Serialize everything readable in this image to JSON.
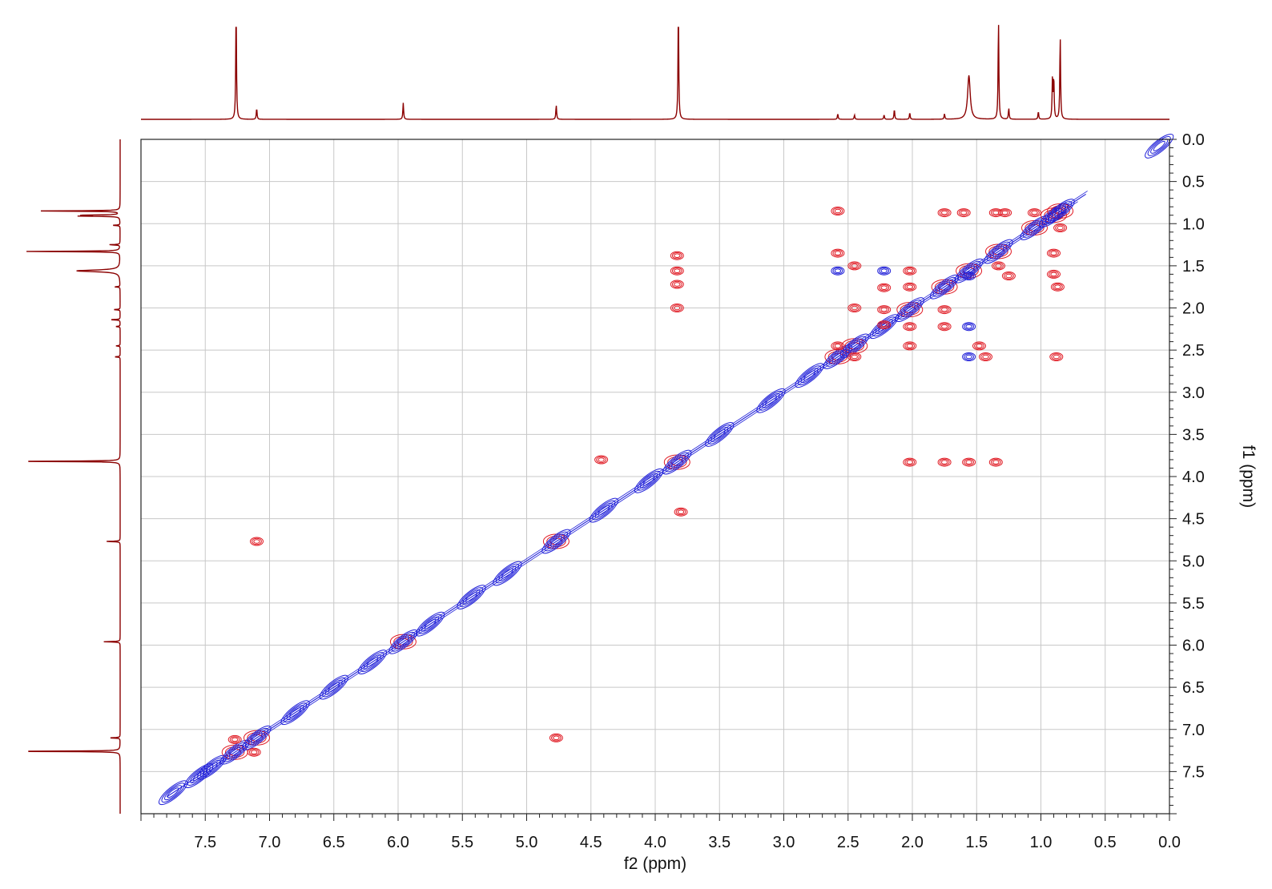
{
  "chart_data": {
    "type": "scatter",
    "subtype": "2D NMR COSY contour plot with 1D projections",
    "xlabel": "f2 (ppm)",
    "ylabel": "f1 (ppm)",
    "xlim": [
      8.0,
      0.0
    ],
    "ylim": [
      0.0,
      8.0
    ],
    "x_reversed": true,
    "y_top_to_bottom": true,
    "grid": true,
    "x_ticks": [
      "7.5",
      "7.0",
      "6.5",
      "6.0",
      "5.5",
      "5.0",
      "4.5",
      "4.0",
      "3.5",
      "3.0",
      "2.5",
      "2.0",
      "1.5",
      "1.0",
      "0.5",
      "0.0"
    ],
    "y_ticks": [
      "0.0",
      "0.5",
      "1.0",
      "1.5",
      "2.0",
      "2.5",
      "3.0",
      "3.5",
      "4.0",
      "4.5",
      "5.0",
      "5.5",
      "6.0",
      "6.5",
      "7.0",
      "7.5"
    ],
    "colors": {
      "positive": "#1f1fd8",
      "negative": "#e01b24",
      "projection": "#8b0000",
      "grid": "#c8c8c8"
    },
    "diagonal_peaks": [
      {
        "x": 7.75,
        "y": 7.75,
        "sign": "pos"
      },
      {
        "x": 7.55,
        "y": 7.55,
        "sign": "pos"
      },
      {
        "x": 7.45,
        "y": 7.45,
        "sign": "pos"
      },
      {
        "x": 7.27,
        "y": 7.27,
        "sign": "both"
      },
      {
        "x": 7.1,
        "y": 7.1,
        "sign": "both"
      },
      {
        "x": 6.8,
        "y": 6.8,
        "sign": "pos"
      },
      {
        "x": 6.5,
        "y": 6.5,
        "sign": "pos"
      },
      {
        "x": 6.2,
        "y": 6.2,
        "sign": "pos"
      },
      {
        "x": 5.96,
        "y": 5.96,
        "sign": "both"
      },
      {
        "x": 5.75,
        "y": 5.75,
        "sign": "pos"
      },
      {
        "x": 5.43,
        "y": 5.43,
        "sign": "pos"
      },
      {
        "x": 5.15,
        "y": 5.15,
        "sign": "pos"
      },
      {
        "x": 4.77,
        "y": 4.77,
        "sign": "both"
      },
      {
        "x": 4.4,
        "y": 4.4,
        "sign": "pos"
      },
      {
        "x": 4.05,
        "y": 4.05,
        "sign": "pos"
      },
      {
        "x": 3.83,
        "y": 3.83,
        "sign": "both"
      },
      {
        "x": 3.5,
        "y": 3.5,
        "sign": "pos"
      },
      {
        "x": 3.1,
        "y": 3.1,
        "sign": "pos"
      },
      {
        "x": 2.8,
        "y": 2.8,
        "sign": "pos"
      },
      {
        "x": 2.58,
        "y": 2.58,
        "sign": "both"
      },
      {
        "x": 2.45,
        "y": 2.45,
        "sign": "both"
      },
      {
        "x": 2.22,
        "y": 2.22,
        "sign": "pos"
      },
      {
        "x": 2.02,
        "y": 2.02,
        "sign": "both"
      },
      {
        "x": 1.75,
        "y": 1.75,
        "sign": "both"
      },
      {
        "x": 1.56,
        "y": 1.56,
        "sign": "both"
      },
      {
        "x": 1.33,
        "y": 1.33,
        "sign": "both"
      },
      {
        "x": 1.05,
        "y": 1.05,
        "sign": "both"
      },
      {
        "x": 0.9,
        "y": 0.9,
        "sign": "both"
      },
      {
        "x": 0.85,
        "y": 0.85,
        "sign": "both"
      },
      {
        "x": 0.08,
        "y": 0.08,
        "sign": "pos"
      }
    ],
    "cross_peaks": [
      {
        "x": 7.27,
        "y": 7.12,
        "sign": "neg"
      },
      {
        "x": 7.12,
        "y": 7.27,
        "sign": "neg"
      },
      {
        "x": 7.1,
        "y": 4.77,
        "sign": "neg"
      },
      {
        "x": 4.77,
        "y": 7.1,
        "sign": "neg"
      },
      {
        "x": 3.83,
        "y": 1.38,
        "sign": "neg"
      },
      {
        "x": 3.83,
        "y": 1.56,
        "sign": "neg"
      },
      {
        "x": 3.83,
        "y": 1.72,
        "sign": "neg"
      },
      {
        "x": 3.83,
        "y": 2.0,
        "sign": "neg"
      },
      {
        "x": 4.42,
        "y": 3.8,
        "sign": "neg"
      },
      {
        "x": 3.8,
        "y": 4.42,
        "sign": "neg"
      },
      {
        "x": 2.02,
        "y": 3.83,
        "sign": "neg"
      },
      {
        "x": 1.75,
        "y": 3.83,
        "sign": "neg"
      },
      {
        "x": 1.56,
        "y": 3.83,
        "sign": "neg"
      },
      {
        "x": 1.35,
        "y": 3.83,
        "sign": "neg"
      },
      {
        "x": 2.58,
        "y": 0.85,
        "sign": "neg"
      },
      {
        "x": 2.58,
        "y": 1.35,
        "sign": "neg"
      },
      {
        "x": 2.58,
        "y": 1.56,
        "sign": "pos"
      },
      {
        "x": 2.58,
        "y": 2.45,
        "sign": "neg"
      },
      {
        "x": 2.45,
        "y": 1.5,
        "sign": "neg"
      },
      {
        "x": 2.45,
        "y": 2.0,
        "sign": "neg"
      },
      {
        "x": 2.45,
        "y": 2.58,
        "sign": "neg"
      },
      {
        "x": 2.22,
        "y": 1.56,
        "sign": "pos"
      },
      {
        "x": 2.22,
        "y": 1.76,
        "sign": "neg"
      },
      {
        "x": 2.22,
        "y": 2.02,
        "sign": "neg"
      },
      {
        "x": 2.22,
        "y": 2.2,
        "sign": "neg"
      },
      {
        "x": 2.02,
        "y": 1.56,
        "sign": "neg"
      },
      {
        "x": 2.02,
        "y": 1.75,
        "sign": "neg"
      },
      {
        "x": 2.02,
        "y": 2.22,
        "sign": "neg"
      },
      {
        "x": 2.02,
        "y": 2.45,
        "sign": "neg"
      },
      {
        "x": 1.75,
        "y": 0.87,
        "sign": "neg"
      },
      {
        "x": 1.75,
        "y": 2.02,
        "sign": "neg"
      },
      {
        "x": 1.75,
        "y": 2.22,
        "sign": "neg"
      },
      {
        "x": 1.6,
        "y": 0.87,
        "sign": "neg"
      },
      {
        "x": 1.56,
        "y": 1.62,
        "sign": "pos"
      },
      {
        "x": 1.56,
        "y": 2.22,
        "sign": "pos"
      },
      {
        "x": 1.56,
        "y": 2.58,
        "sign": "pos"
      },
      {
        "x": 1.48,
        "y": 2.45,
        "sign": "neg"
      },
      {
        "x": 1.43,
        "y": 2.58,
        "sign": "neg"
      },
      {
        "x": 1.35,
        "y": 0.87,
        "sign": "neg"
      },
      {
        "x": 1.33,
        "y": 1.5,
        "sign": "neg"
      },
      {
        "x": 1.28,
        "y": 0.87,
        "sign": "neg"
      },
      {
        "x": 1.25,
        "y": 1.62,
        "sign": "neg"
      },
      {
        "x": 1.05,
        "y": 0.87,
        "sign": "neg"
      },
      {
        "x": 0.9,
        "y": 1.35,
        "sign": "neg"
      },
      {
        "x": 0.9,
        "y": 1.6,
        "sign": "neg"
      },
      {
        "x": 0.88,
        "y": 2.58,
        "sign": "neg"
      },
      {
        "x": 0.85,
        "y": 1.05,
        "sign": "neg"
      },
      {
        "x": 0.87,
        "y": 1.75,
        "sign": "neg"
      }
    ],
    "projection_peaks": [
      {
        "ppm": 7.26,
        "intensity": 1.0
      },
      {
        "ppm": 7.1,
        "intensity": 0.1
      },
      {
        "ppm": 5.96,
        "intensity": 0.15
      },
      {
        "ppm": 4.77,
        "intensity": 0.13
      },
      {
        "ppm": 3.82,
        "intensity": 1.0
      },
      {
        "ppm": 2.58,
        "intensity": 0.05
      },
      {
        "ppm": 2.45,
        "intensity": 0.04
      },
      {
        "ppm": 2.22,
        "intensity": 0.04
      },
      {
        "ppm": 2.14,
        "intensity": 0.09
      },
      {
        "ppm": 2.02,
        "intensity": 0.06
      },
      {
        "ppm": 1.75,
        "intensity": 0.05
      },
      {
        "ppm": 1.56,
        "intensity": 0.4
      },
      {
        "ppm": 1.33,
        "intensity": 0.9
      },
      {
        "ppm": 1.25,
        "intensity": 0.1
      },
      {
        "ppm": 1.02,
        "intensity": 0.07
      },
      {
        "ppm": 0.91,
        "intensity": 0.37
      },
      {
        "ppm": 0.9,
        "intensity": 0.37
      },
      {
        "ppm": 0.85,
        "intensity": 0.76
      }
    ]
  }
}
